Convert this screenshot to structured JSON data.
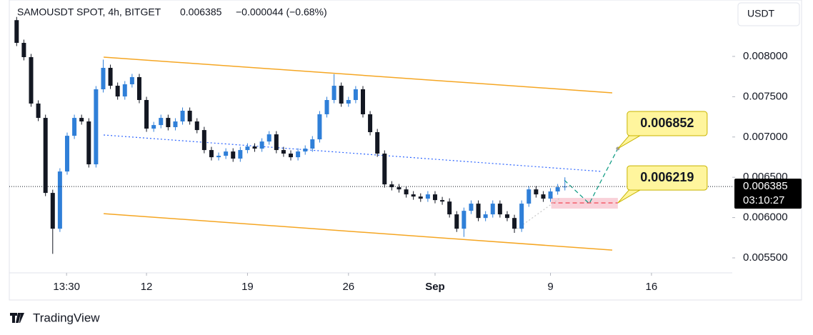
{
  "chart_data": {
    "type": "candlestick",
    "symbol": "SAMOUSDT SPOT, 4h, BITGET",
    "last_price": 0.006385,
    "change": "−0.000044 (−0.68%)",
    "currency": "USDT",
    "countdown": "03:10:27",
    "brand": "TradingView",
    "up_color": "#2f7fd8",
    "down_color": "#131722",
    "xlim": [
      2.49,
      52.6
    ],
    "ylim": [
      0.005314,
      0.0087
    ],
    "xticks": [
      {
        "value": 6.46,
        "label": "13:30"
      },
      12,
      19,
      26,
      {
        "value": 32,
        "label": "Sep"
      },
      {
        "value": 40,
        "label": "9"
      },
      {
        "value": 47,
        "label": "16"
      }
    ],
    "yticks": [
      {
        "value": 0.0055,
        "label": "0.005500"
      },
      {
        "value": 0.006,
        "label": "0.006000"
      },
      {
        "value": 0.0065,
        "label": "0.006500"
      },
      {
        "value": 0.007,
        "label": "0.007000"
      },
      {
        "value": 0.0075,
        "label": "0.007500"
      },
      {
        "value": 0.008,
        "label": "0.008000"
      }
    ],
    "x": [
      3,
      3.5,
      4,
      4.5,
      5,
      5.5,
      6,
      6.5,
      7,
      7.5,
      8,
      8.5,
      9,
      9.5,
      10,
      10.5,
      11,
      11.5,
      12,
      12.5,
      13,
      13.5,
      14,
      14.5,
      15,
      15.5,
      16,
      16.5,
      17,
      17.5,
      18,
      18.5,
      19,
      19.5,
      20,
      20.5,
      21,
      21.5,
      22,
      22.5,
      23,
      23.5,
      24,
      24.5,
      25,
      25.5,
      26,
      26.5,
      27,
      27.5,
      28,
      28.5,
      29,
      29.5,
      30,
      30.5,
      31,
      31.5,
      32,
      32.5,
      33,
      33.5,
      34,
      34.5,
      35,
      35.5,
      36,
      36.5,
      37,
      37.5,
      38,
      38.5,
      39,
      39.5,
      40,
      40.5,
      41
    ],
    "open": [
      0.00845,
      0.008168,
      0.007991,
      0.007415,
      0.007237,
      0.006306,
      0.005862,
      0.006572,
      0.007015,
      0.007237,
      0.007193,
      0.006661,
      0.007592,
      0.007858,
      0.007636,
      0.007503,
      0.007654,
      0.007743,
      0.007459,
      0.007104,
      0.007148,
      0.007237,
      0.007122,
      0.007193,
      0.007326,
      0.007193,
      0.007086,
      0.006838,
      0.006749,
      0.006767,
      0.00682,
      0.006732,
      0.006838,
      0.006882,
      0.006856,
      0.006944,
      0.007033,
      0.006838,
      0.006794,
      0.006749,
      0.00682,
      0.006856,
      0.006971,
      0.007282,
      0.007459,
      0.007636,
      0.007415,
      0.007459,
      0.007592,
      0.007282,
      0.00706,
      0.006794,
      0.006412,
      0.006377,
      0.00635,
      0.006288,
      0.006261,
      0.006235,
      0.006288,
      0.006217,
      0.006199,
      0.00604,
      0.005862,
      0.006084,
      0.006173,
      0.005995,
      0.00604,
      0.006173,
      0.00604,
      0.005995,
      0.005862,
      0.006173,
      0.00635,
      0.006288,
      0.006235,
      0.006324,
      0.006377
    ],
    "high": [
      0.00849,
      0.008208,
      0.008031,
      0.007455,
      0.007277,
      0.006346,
      0.006612,
      0.007055,
      0.007277,
      0.007277,
      0.007233,
      0.007632,
      0.00796,
      0.007898,
      0.007676,
      0.007694,
      0.007783,
      0.007783,
      0.007499,
      0.007188,
      0.007277,
      0.007277,
      0.007233,
      0.007366,
      0.007366,
      0.007233,
      0.007126,
      0.006878,
      0.006807,
      0.00686,
      0.00686,
      0.006878,
      0.006922,
      0.006922,
      0.006984,
      0.007073,
      0.007073,
      0.006878,
      0.006834,
      0.00686,
      0.006896,
      0.007011,
      0.007322,
      0.007499,
      0.00778,
      0.007676,
      0.007499,
      0.007632,
      0.007632,
      0.007322,
      0.0071,
      0.006834,
      0.006452,
      0.006417,
      0.00639,
      0.006328,
      0.006301,
      0.006328,
      0.006328,
      0.006257,
      0.006239,
      0.00608,
      0.006124,
      0.006213,
      0.006213,
      0.00608,
      0.006213,
      0.006213,
      0.00608,
      0.006035,
      0.006213,
      0.00639,
      0.00639,
      0.006328,
      0.006364,
      0.006417,
      0.0065
    ],
    "low": [
      0.008128,
      0.007951,
      0.007375,
      0.007197,
      0.006266,
      0.00555,
      0.005822,
      0.006532,
      0.006975,
      0.007153,
      0.006621,
      0.006621,
      0.007552,
      0.007596,
      0.007463,
      0.007463,
      0.007614,
      0.007419,
      0.007064,
      0.007064,
      0.007108,
      0.007082,
      0.007082,
      0.007153,
      0.007153,
      0.007046,
      0.006798,
      0.006709,
      0.006709,
      0.006727,
      0.006692,
      0.006692,
      0.006798,
      0.006816,
      0.006816,
      0.006904,
      0.006798,
      0.006754,
      0.006709,
      0.006709,
      0.00678,
      0.006816,
      0.006931,
      0.007242,
      0.007419,
      0.007375,
      0.007375,
      0.007419,
      0.007242,
      0.00702,
      0.006754,
      0.006372,
      0.006337,
      0.00631,
      0.006248,
      0.006221,
      0.006195,
      0.006195,
      0.006177,
      0.006159,
      0.006,
      0.005822,
      0.00576,
      0.006044,
      0.005955,
      0.005955,
      0.006,
      0.006,
      0.005955,
      0.00581,
      0.005822,
      0.006133,
      0.006248,
      0.006195,
      0.006195,
      0.006284,
      0.006337
    ],
    "close": [
      0.008168,
      0.007991,
      0.007415,
      0.007237,
      0.006306,
      0.005862,
      0.006572,
      0.007015,
      0.007237,
      0.007193,
      0.006661,
      0.007592,
      0.007858,
      0.007636,
      0.007503,
      0.007654,
      0.007743,
      0.007459,
      0.007104,
      0.007148,
      0.007237,
      0.007122,
      0.007193,
      0.007326,
      0.007193,
      0.007086,
      0.006838,
      0.006749,
      0.006767,
      0.00682,
      0.006732,
      0.006838,
      0.006882,
      0.006856,
      0.006944,
      0.007033,
      0.006838,
      0.006794,
      0.006749,
      0.00682,
      0.006856,
      0.006971,
      0.007282,
      0.007459,
      0.007636,
      0.007415,
      0.007459,
      0.007592,
      0.007282,
      0.00706,
      0.006794,
      0.006412,
      0.006377,
      0.00635,
      0.006288,
      0.006261,
      0.006235,
      0.006288,
      0.006217,
      0.006199,
      0.00604,
      0.005862,
      0.006084,
      0.006173,
      0.005995,
      0.00604,
      0.006173,
      0.00604,
      0.005995,
      0.005862,
      0.006173,
      0.00635,
      0.006288,
      0.006235,
      0.006324,
      0.006377,
      0.006385
    ],
    "drawings": [
      {
        "type": "line",
        "style": "solid",
        "color": "#f5a623",
        "points": [
          [
            9.03,
            0.007991
          ],
          [
            44.28,
            0.007548
          ]
        ]
      },
      {
        "type": "line",
        "style": "solid",
        "color": "#f5a623",
        "points": [
          [
            9.03,
            0.006049
          ],
          [
            44.28,
            0.005596
          ]
        ]
      },
      {
        "type": "line",
        "style": "dotted",
        "color": "#2962ff",
        "points": [
          [
            9.03,
            0.007025
          ],
          [
            43.58,
            0.006572
          ]
        ]
      },
      {
        "type": "rect",
        "style": "solid",
        "color": "#f7c6cf",
        "points": [
          [
            40.05,
            0.006244
          ],
          [
            44.67,
            0.006111
          ]
        ]
      },
      {
        "type": "line",
        "style": "dashed",
        "color": "#f23645",
        "points": [
          [
            40.05,
            0.006182
          ],
          [
            44.67,
            0.006182
          ]
        ]
      },
      {
        "type": "line",
        "style": "dashed",
        "color": "#089981",
        "points": [
          [
            40.96,
            0.006465
          ],
          [
            42.69,
            0.006173
          ],
          [
            44.67,
            0.006856
          ]
        ]
      },
      {
        "type": "line",
        "style": "dotted",
        "color": "#c8c8c8",
        "points": [
          [
            37.7,
            0.005862
          ],
          [
            40.6,
            0.006235
          ]
        ]
      }
    ],
    "price_labels": [
      {
        "value": 0.006852,
        "x": 44.67,
        "y": 0.006856
      },
      {
        "value": 0.006219,
        "x": 44.67,
        "y": 0.006182
      }
    ]
  }
}
